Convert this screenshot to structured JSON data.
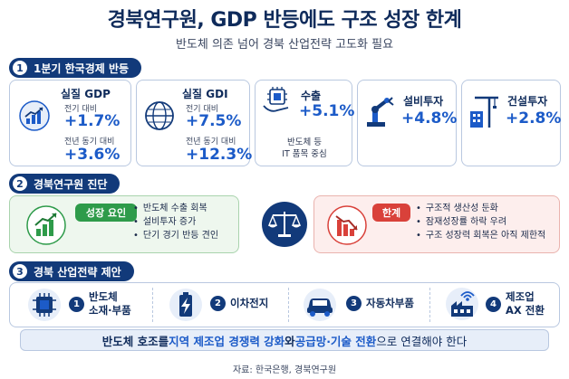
{
  "title": "경북연구원, GDP 반등에도 구조 성장 한계",
  "subtitle": "반도체 의존 넘어 경북 산업전략 고도화 필요",
  "section1": {
    "num": "1",
    "label": "1분기 한국경제 반등",
    "cards": [
      {
        "title": "실질 GDP",
        "sub1": "전기 대비",
        "val1": "+1.7%",
        "sub2": "전년 동기 대비",
        "val2": "+3.6%",
        "icon": "chart-up-icon"
      },
      {
        "title": "실질 GDI",
        "sub1": "전기 대비",
        "val1": "+7.5%",
        "sub2": "전년 동기 대비",
        "val2": "+12.3%",
        "icon": "globe-icon"
      },
      {
        "title": "수출",
        "val1": "+5.1%",
        "note_line1": "반도체 등",
        "note_line2": "IT 품목 중심",
        "icon": "chip-hand-icon"
      },
      {
        "title": "설비투자",
        "val1": "+4.8%",
        "icon": "robot-arm-icon"
      },
      {
        "title": "건설투자",
        "val1": "+2.8%",
        "icon": "crane-building-icon"
      }
    ]
  },
  "section2": {
    "num": "2",
    "label": "경북연구원 진단",
    "growth": {
      "badge": "성장 요인",
      "items": [
        "반도체 수출 회복",
        "설비투자 증가",
        "단기 경기 반등 견인"
      ]
    },
    "limit": {
      "badge": "한계",
      "items": [
        "구조적 생산성 둔화",
        "잠재성장률 하락 우려",
        "구조 성장력 회복은 아직 제한적"
      ]
    }
  },
  "section3": {
    "num": "3",
    "label": "경북 산업전략 제안",
    "items": [
      {
        "num": "1",
        "line1": "반도체",
        "line2": "소재·부품",
        "icon": "chip-icon"
      },
      {
        "num": "2",
        "line1": "이차전지",
        "line2": "",
        "icon": "battery-icon"
      },
      {
        "num": "3",
        "line1": "자동차부품",
        "line2": "",
        "icon": "car-icon"
      },
      {
        "num": "4",
        "line1": "제조업",
        "line2": "AX 전환",
        "icon": "ai-factory-icon"
      }
    ]
  },
  "banner": {
    "part1": "반도체 호조를 ",
    "part2": "지역 제조업 경쟁력 강화",
    "part3": "와 ",
    "part4": "공급망·기술 전환",
    "part5": "으로 연결해야 한다"
  },
  "source": "자료: 한국은행, 경북연구원",
  "colors": {
    "navy": "#123a7a",
    "blue": "#1c5bc8",
    "green": "#2e9b4a",
    "red": "#d9413a"
  }
}
